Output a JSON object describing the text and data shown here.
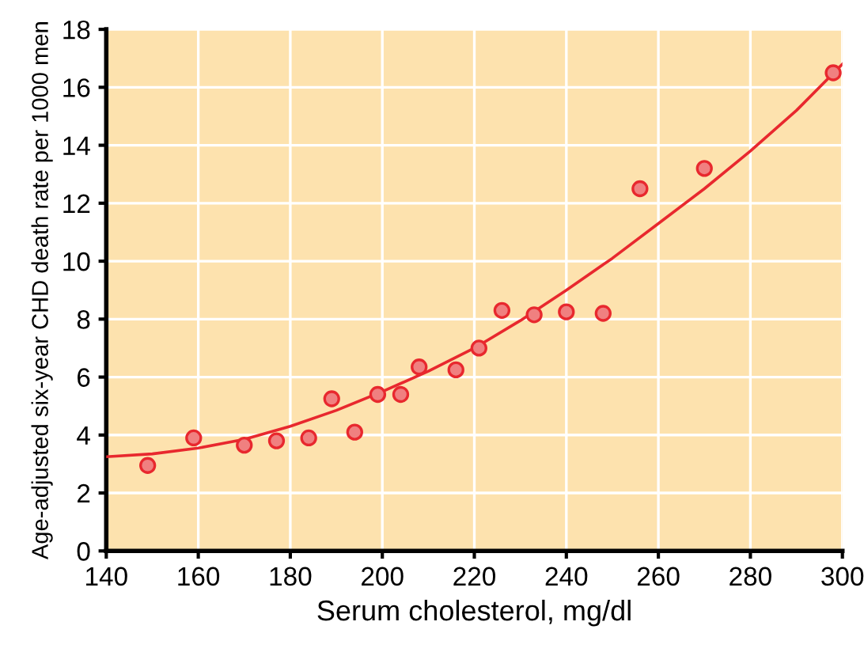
{
  "chart_data": {
    "type": "scatter",
    "xlabel": "Serum cholesterol, mg/dl",
    "ylabel": "Age-adjusted six-year CHD death rate per 1000 men",
    "series": [
      {
        "color": "#f08080",
        "x": [
          149,
          159,
          170,
          177,
          184,
          189,
          194,
          199,
          204,
          208,
          216,
          221,
          226,
          233,
          240,
          248,
          256,
          270,
          298
        ],
        "values": [
          2.95,
          3.9,
          3.65,
          3.8,
          3.9,
          5.25,
          4.1,
          5.4,
          5.4,
          6.35,
          6.25,
          7.0,
          8.3,
          8.15,
          8.25,
          8.2,
          12.5,
          13.2,
          16.5
        ],
        "marker": "circle"
      },
      {
        "type": "line",
        "color": "#e8282e",
        "x": [
          140,
          150,
          160,
          170,
          180,
          190,
          200,
          210,
          220,
          230,
          240,
          250,
          260,
          270,
          280,
          290,
          300
        ],
        "values": [
          3.25,
          3.35,
          3.55,
          3.85,
          4.3,
          4.85,
          5.5,
          6.2,
          7.0,
          7.95,
          9.0,
          10.1,
          11.3,
          12.5,
          13.8,
          15.2,
          16.8
        ],
        "marker": "none"
      }
    ],
    "xlim": [
      140,
      300
    ],
    "xticks": [
      140,
      160,
      180,
      200,
      220,
      240,
      260,
      280,
      300
    ],
    "ylim": [
      0,
      18
    ],
    "yticks": [
      0,
      2,
      4,
      6,
      8,
      10,
      12,
      14,
      16,
      18
    ],
    "grid": true
  }
}
